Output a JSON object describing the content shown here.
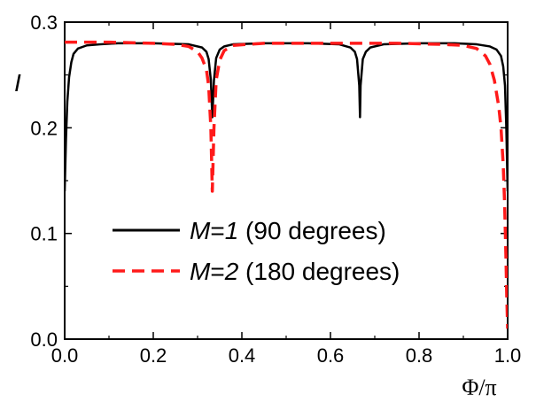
{
  "chart_data": {
    "type": "line",
    "title": "",
    "xlabel": "Φ/π",
    "ylabel": "I",
    "xlim": [
      0.0,
      1.0
    ],
    "ylim": [
      0.0,
      0.3
    ],
    "xticks": [
      "0.0",
      "0.2",
      "0.4",
      "0.6",
      "0.8",
      "1.0"
    ],
    "yticks": [
      "0.0",
      "0.1",
      "0.2",
      "0.3"
    ],
    "legend_position": "center-right",
    "grid": false,
    "series": [
      {
        "name": "M=1 (90 degrees)",
        "legend_italic": "M",
        "legend_eq": "=",
        "legend_num": "1",
        "legend_rest": " (90 degrees)",
        "color": "#000000",
        "style": "solid",
        "x": [
          0.0,
          0.003,
          0.006,
          0.01,
          0.015,
          0.02,
          0.03,
          0.05,
          0.08,
          0.12,
          0.2,
          0.28,
          0.31,
          0.32,
          0.325,
          0.33,
          0.3333,
          0.337,
          0.342,
          0.35,
          0.36,
          0.38,
          0.45,
          0.55,
          0.62,
          0.645,
          0.655,
          0.66,
          0.665,
          0.6667,
          0.668,
          0.673,
          0.68,
          0.69,
          0.72,
          0.8,
          0.88,
          0.93,
          0.96,
          0.975,
          0.985,
          0.99,
          0.994,
          0.997,
          1.0
        ],
        "y": [
          0.14,
          0.19,
          0.225,
          0.248,
          0.262,
          0.27,
          0.275,
          0.278,
          0.279,
          0.28,
          0.28,
          0.279,
          0.276,
          0.272,
          0.265,
          0.245,
          0.21,
          0.245,
          0.266,
          0.274,
          0.277,
          0.279,
          0.28,
          0.28,
          0.279,
          0.276,
          0.272,
          0.265,
          0.24,
          0.21,
          0.24,
          0.265,
          0.272,
          0.276,
          0.279,
          0.28,
          0.28,
          0.279,
          0.277,
          0.274,
          0.268,
          0.258,
          0.24,
          0.2,
          0.14
        ]
      },
      {
        "name": "M=2 (180 degrees)",
        "legend_italic": "M",
        "legend_eq": "=",
        "legend_num": "2",
        "legend_rest": " (180 degrees)",
        "color": "#ff1a1a",
        "style": "dashed",
        "x": [
          0.0,
          0.05,
          0.1,
          0.2,
          0.25,
          0.28,
          0.3,
          0.31,
          0.32,
          0.325,
          0.33,
          0.3333,
          0.337,
          0.342,
          0.35,
          0.36,
          0.38,
          0.45,
          0.6,
          0.75,
          0.85,
          0.9,
          0.93,
          0.95,
          0.96,
          0.97,
          0.98,
          0.985,
          0.99,
          0.993,
          0.996,
          0.998,
          1.0
        ],
        "y": [
          0.281,
          0.281,
          0.281,
          0.28,
          0.279,
          0.277,
          0.272,
          0.266,
          0.255,
          0.24,
          0.2,
          0.14,
          0.2,
          0.245,
          0.264,
          0.273,
          0.278,
          0.28,
          0.28,
          0.28,
          0.279,
          0.278,
          0.275,
          0.268,
          0.26,
          0.245,
          0.22,
          0.2,
          0.165,
          0.13,
          0.08,
          0.04,
          0.01
        ]
      }
    ]
  }
}
